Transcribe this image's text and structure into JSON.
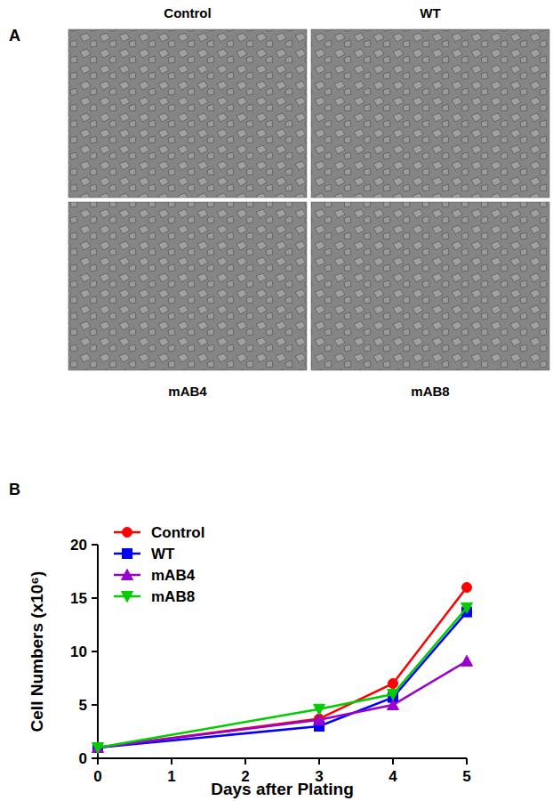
{
  "figure": {
    "panel_a": {
      "label": "A",
      "images": [
        "Control",
        "WT",
        "mAB4",
        "mAB8"
      ]
    },
    "panel_b": {
      "label": "B"
    }
  },
  "chart_data": {
    "type": "line",
    "x_label": "Days after Plating",
    "y_label": "Cell Numbers (x10⁶)",
    "x": [
      0,
      3,
      4,
      5
    ],
    "series": [
      {
        "name": "Control",
        "color": "#ff0000",
        "marker": "circle",
        "values": [
          1,
          3.7,
          7,
          16
        ]
      },
      {
        "name": "WT",
        "color": "#0000ff",
        "marker": "square",
        "values": [
          1,
          3,
          5.7,
          13.7
        ]
      },
      {
        "name": "mAB4",
        "color": "#9900cc",
        "marker": "triangle",
        "values": [
          1,
          3.6,
          5,
          9.1
        ]
      },
      {
        "name": "mAB8",
        "color": "#00cc00",
        "marker": "triangle-down",
        "values": [
          1,
          4.6,
          6,
          14.1
        ]
      }
    ],
    "xlim": [
      0,
      5
    ],
    "xticks": [
      0,
      1,
      2,
      3,
      4,
      5
    ],
    "ylim": [
      0,
      20
    ],
    "yticks": [
      0,
      5,
      10,
      15,
      20
    ],
    "grid": false,
    "legend": "upper-left"
  }
}
